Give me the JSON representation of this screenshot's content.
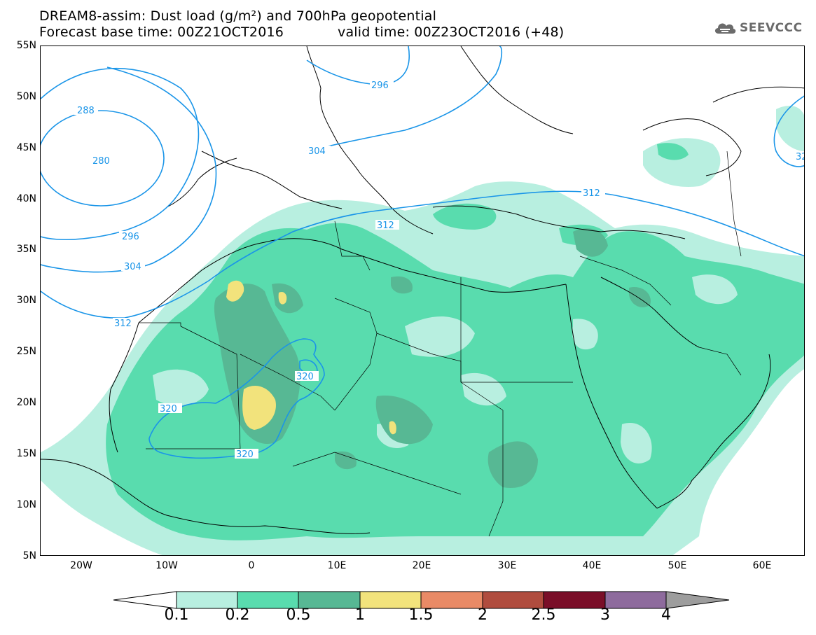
{
  "header": {
    "title_line1": "DREAM8-assim: Dust load (g/m²) and 700hPa geopotential",
    "title_line2_left": "Forecast base time: 00Z21OCT2016",
    "title_line2_right": "valid time: 00Z23OCT2016 (+48)",
    "logo_text": "SEEVCCC"
  },
  "map": {
    "lat_labels": [
      "55N",
      "50N",
      "45N",
      "40N",
      "35N",
      "30N",
      "25N",
      "20N",
      "15N",
      "10N",
      "5N"
    ],
    "lon_labels": [
      "20W",
      "10W",
      "0",
      "10E",
      "20E",
      "30E",
      "40E",
      "50E",
      "60E"
    ],
    "contour_labels": [
      "288",
      "280",
      "296",
      "304",
      "296",
      "304",
      "312",
      "312",
      "312",
      "320",
      "320",
      "320",
      "32"
    ]
  },
  "colorbar": {
    "labels": [
      "0.1",
      "0.2",
      "0.5",
      "1",
      "1.5",
      "2",
      "2.5",
      "3",
      "4"
    ],
    "colors": [
      "#b8efe0",
      "#59dcae",
      "#57b894",
      "#f2e37c",
      "#e98a66",
      "#b04c3e",
      "#7a0e28",
      "#8e6b9d",
      "#9d9d9d"
    ]
  },
  "colors": {
    "dust_light": "#b8efe0",
    "dust_mid": "#59dcae",
    "dust_dark": "#57b894",
    "dust_yellow": "#f2e37c",
    "contour": "#1a95e8"
  }
}
